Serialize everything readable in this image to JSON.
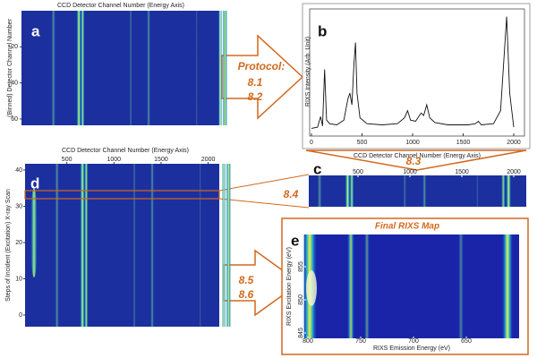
{
  "panels": {
    "a": {
      "letter": "a",
      "x_title": "CCD Detector Channel Number (Energy Axis)",
      "y_title": "(Binned) Detector Channel Number",
      "yticks": [
        20,
        40,
        60
      ]
    },
    "b": {
      "letter": "b",
      "x_title": "CCD Detector Channel Number (Energy Axis)",
      "y_title": "RIXS Intensity (Arb. Unit)",
      "xlim": [
        0,
        2000
      ],
      "ylim": [
        0,
        105
      ],
      "xticks": [
        0,
        500,
        1000,
        1500,
        2000
      ],
      "spectrum": {
        "x": [
          0,
          60,
          90,
          110,
          130,
          150,
          180,
          250,
          320,
          360,
          380,
          400,
          420,
          435,
          450,
          480,
          550,
          700,
          850,
          920,
          950,
          980,
          1030,
          1060,
          1085,
          1110,
          1140,
          1170,
          1220,
          1350,
          1550,
          1620,
          1650,
          1680,
          1800,
          1870,
          1900,
          1930,
          1960,
          2000
        ],
        "values": [
          5,
          6,
          15,
          7,
          55,
          12,
          9,
          8,
          12,
          30,
          35,
          25,
          60,
          78,
          35,
          14,
          9,
          8,
          9,
          14,
          20,
          12,
          11,
          15,
          18,
          16,
          25,
          14,
          10,
          8,
          8,
          9,
          11,
          8,
          9,
          20,
          60,
          100,
          35,
          6
        ]
      }
    },
    "c": {
      "letter": "c",
      "xticks": [
        500,
        1000,
        1500,
        2000
      ]
    },
    "d": {
      "letter": "d",
      "x_title": "CCD Detector Channel Number (Energy Axis)",
      "y_title": "Steps of Incident (Excitation) X-ray Scan",
      "xticks": [
        500,
        1000,
        1500,
        2000
      ],
      "yticks": [
        40,
        30,
        20,
        10,
        0
      ]
    },
    "e": {
      "letter": "e",
      "title": "Final RIXS Map",
      "x_title": "RIXS Emission Energy (eV)",
      "y_title": "RIXS Excitation Energy (eV)",
      "xticks": [
        800,
        750,
        700,
        650
      ],
      "yticks": [
        855,
        850,
        845
      ]
    }
  },
  "steps": {
    "protocol": "Protocol:",
    "s1": "8.1",
    "s2": "8.2",
    "s3": "8.3",
    "s4": "8.4",
    "s5": "8.5",
    "s6": "8.6"
  }
}
